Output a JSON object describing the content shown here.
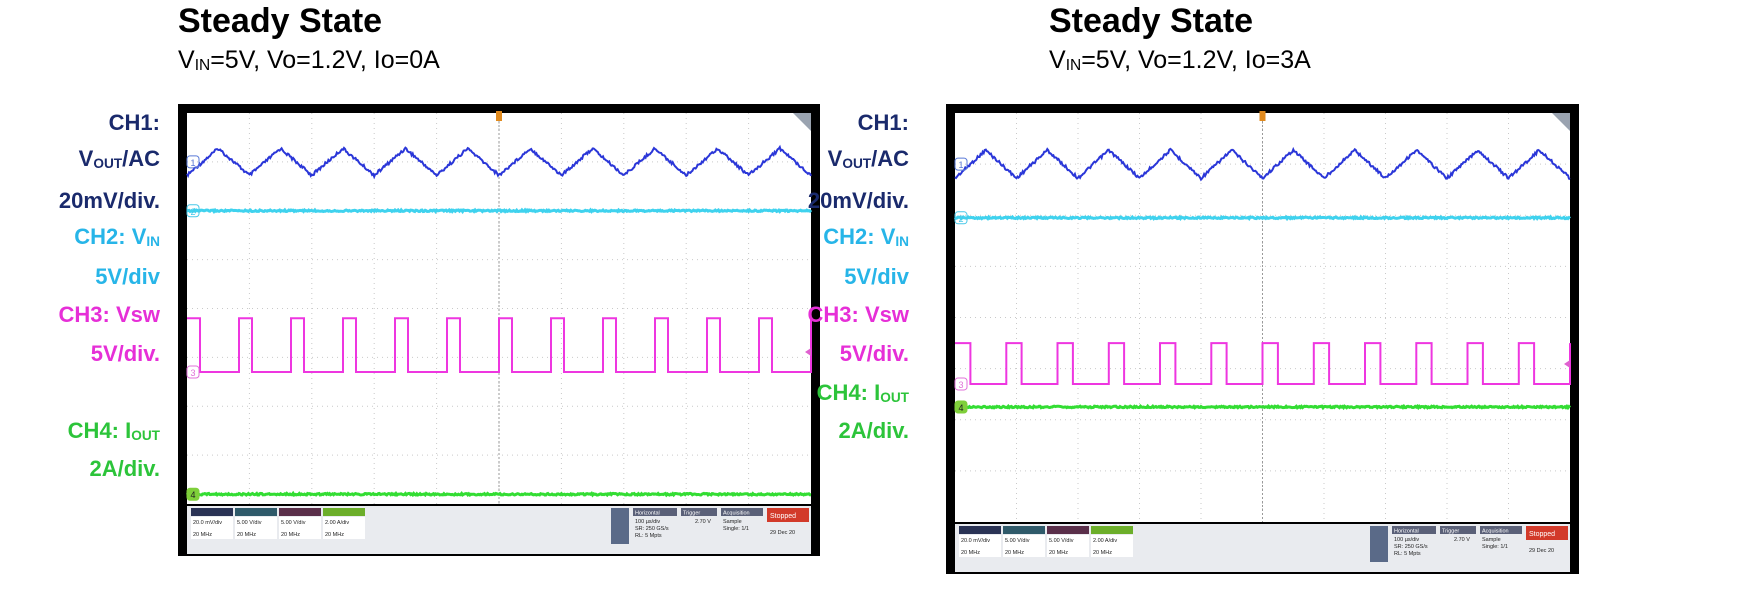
{
  "chart_data": [
    {
      "type": "line",
      "title": "Steady State",
      "subtitle": {
        "vin": "=5V, Vo=1.2V, Io=0A",
        "vin_prefix": "V",
        "vin_sub": "IN"
      },
      "channel_labels": [
        {
          "id": "ch1",
          "lines": [
            {
              "text": "CH1:"
            },
            {
              "text": "V",
              "sub": "OUT",
              "suffix": "/AC"
            },
            {
              "text": "20mV/div."
            }
          ],
          "color": "#1a2a6c"
        },
        {
          "id": "ch2",
          "lines": [
            {
              "text": "CH2: V",
              "sub": "IN"
            },
            {
              "text": "5V/div"
            }
          ],
          "color": "#27b5e8"
        },
        {
          "id": "ch3",
          "lines": [
            {
              "text": "CH3: Vsw"
            },
            {
              "text": "5V/div."
            }
          ],
          "color": "#e62fd7"
        },
        {
          "id": "ch4",
          "lines": [
            {
              "text": "CH4: I",
              "sub": "OUT"
            },
            {
              "text": "2A/div."
            }
          ],
          "color": "#2cc43a"
        }
      ],
      "divisions": {
        "x": 10,
        "y": 8
      },
      "series": [
        {
          "channel": "CH1",
          "shape": "ripple",
          "level_div": 1.0,
          "amplitude_div": 0.55,
          "periods": 10,
          "color": "#2a36d8"
        },
        {
          "channel": "CH2",
          "shape": "flat",
          "level_div": 2.0,
          "color": "#3fd2ee"
        },
        {
          "channel": "CH3",
          "shape": "pulse",
          "level_div": 5.3,
          "high_div": 4.2,
          "periods": 12,
          "duty": 0.25,
          "color": "#ee36e0"
        },
        {
          "channel": "CH4",
          "shape": "flat",
          "level_div": 7.8,
          "color": "#33dd33"
        }
      ],
      "markers": {
        "ch1": "1",
        "ch2": "2",
        "ch3": "3",
        "ch4": "4"
      },
      "status_bar": {
        "channels": [
          {
            "scale": "20.0 mV/div",
            "bw": "20 MHz"
          },
          {
            "scale": "5.00 V/div",
            "bw": "20 MHz"
          },
          {
            "scale": "5.00 V/div",
            "bw": "20 MHz"
          },
          {
            "scale": "2.00 A/div",
            "bw": "20 MHz"
          }
        ],
        "horizontal": {
          "label": "Horizontal",
          "scale": "100 µs/div",
          "sr": "SR: 250 GS/s",
          "rl": "RL: 5 Mpts"
        },
        "trigger": {
          "label": "Trigger",
          "level": "2.70 V"
        },
        "acquisition": {
          "label": "Acquisition",
          "mode": "Sample",
          "single": "Single: 1/1"
        },
        "state": "Stopped",
        "date": "29 Dec 20"
      }
    },
    {
      "type": "line",
      "title": "Steady State",
      "subtitle": {
        "vin": "=5V, Vo=1.2V, Io=3A",
        "vin_prefix": "V",
        "vin_sub": "IN"
      },
      "channel_labels": [
        {
          "id": "ch1",
          "lines": [
            {
              "text": "CH1:"
            },
            {
              "text": "V",
              "sub": "OUT",
              "suffix": "/AC"
            },
            {
              "text": "20mV/div."
            }
          ],
          "color": "#1a2a6c"
        },
        {
          "id": "ch2",
          "lines": [
            {
              "text": "CH2: V",
              "sub": "IN"
            },
            {
              "text": "5V/div"
            }
          ],
          "color": "#27b5e8"
        },
        {
          "id": "ch3",
          "lines": [
            {
              "text": "CH3: Vsw"
            },
            {
              "text": "5V/div."
            }
          ],
          "color": "#e62fd7"
        },
        {
          "id": "ch4",
          "lines": [
            {
              "text": "CH4: I",
              "sub": "OUT"
            },
            {
              "text": "2A/div."
            }
          ],
          "color": "#2cc43a"
        }
      ],
      "divisions": {
        "x": 10,
        "y": 8
      },
      "series": [
        {
          "channel": "CH1",
          "shape": "ripple",
          "level_div": 1.0,
          "amplitude_div": 0.55,
          "periods": 10,
          "color": "#2a36d8"
        },
        {
          "channel": "CH2",
          "shape": "flat",
          "level_div": 2.05,
          "color": "#3fd2ee"
        },
        {
          "channel": "CH3",
          "shape": "pulse",
          "level_div": 5.3,
          "high_div": 4.5,
          "periods": 12,
          "duty": 0.3,
          "color": "#ee36e0"
        },
        {
          "channel": "CH4",
          "shape": "flat",
          "level_div": 5.75,
          "color": "#33dd33"
        }
      ],
      "markers": {
        "ch1": "1",
        "ch2": "2",
        "ch3": "3",
        "ch4": "4"
      },
      "status_bar": {
        "channels": [
          {
            "scale": "20.0 mV/div",
            "bw": "20 MHz"
          },
          {
            "scale": "5.00 V/div",
            "bw": "20 MHz"
          },
          {
            "scale": "5.00 V/div",
            "bw": "20 MHz"
          },
          {
            "scale": "2.00 A/div",
            "bw": "20 MHz"
          }
        ],
        "horizontal": {
          "label": "Horizontal",
          "scale": "100 µs/div",
          "sr": "SR: 250 GS/s",
          "rl": "RL: 5 Mpts"
        },
        "trigger": {
          "label": "Trigger",
          "level": "2.70 V"
        },
        "acquisition": {
          "label": "Acquisition",
          "mode": "Sample",
          "single": "Single: 1/1"
        },
        "state": "Stopped",
        "date": "29 Dec 20"
      }
    }
  ]
}
